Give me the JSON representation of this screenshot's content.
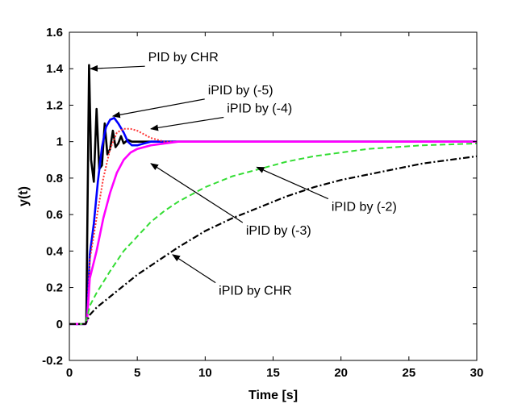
{
  "chart_data": {
    "type": "line",
    "title": "",
    "xlabel": "Time [s]",
    "ylabel": "y(t)",
    "xlim": [
      0,
      30
    ],
    "ylim": [
      -0.2,
      1.6
    ],
    "xticks": [
      0,
      5,
      10,
      15,
      20,
      25,
      30
    ],
    "yticks": [
      -0.2,
      0,
      0.2,
      0.4,
      0.6,
      0.8,
      1,
      1.2,
      1.4,
      1.6
    ],
    "xtick_labels": [
      "0",
      "5",
      "10",
      "15",
      "20",
      "25",
      "30"
    ],
    "ytick_labels": [
      "-0.2",
      "0",
      "0.2",
      "0.4",
      "0.6",
      "0.8",
      "1",
      "1.2",
      "1.4",
      "1.6"
    ],
    "grid": false,
    "series": [
      {
        "color": "#000000",
        "style": "solid",
        "x": [
          0,
          1.2,
          1.25,
          1.45,
          1.6,
          1.8,
          2.0,
          2.2,
          2.4,
          2.6,
          2.8,
          3.0,
          3.2,
          3.4,
          3.6,
          3.8,
          4.0,
          4.3,
          4.6,
          5.0,
          6.0,
          30
        ],
        "y": [
          0,
          0,
          0.02,
          1.42,
          0.9,
          0.78,
          1.18,
          0.85,
          0.87,
          1.1,
          0.93,
          0.96,
          1.06,
          0.97,
          0.99,
          1.03,
          0.99,
          1.01,
          1.0,
          1.0,
          1.0,
          1.0
        ]
      },
      {
        "color": "#0000ff",
        "style": "solid",
        "x": [
          0,
          1.2,
          1.3,
          1.5,
          1.8,
          2.1,
          2.4,
          2.7,
          3.0,
          3.3,
          3.6,
          4.0,
          4.3,
          4.6,
          5.0,
          5.5,
          6.0,
          7.0,
          30
        ],
        "y": [
          0,
          0,
          0.02,
          0.38,
          0.55,
          0.78,
          0.97,
          1.08,
          1.12,
          1.13,
          1.1,
          1.05,
          1.0,
          0.98,
          0.98,
          0.99,
          1.0,
          1.0,
          1.0
        ]
      },
      {
        "color": "#ff3333",
        "style": "dotted",
        "x": [
          0,
          1.2,
          1.3,
          1.5,
          2.0,
          2.5,
          3.0,
          3.5,
          4.0,
          4.5,
          5.0,
          5.5,
          6.0,
          7.0,
          8.0,
          30
        ],
        "y": [
          0,
          0,
          0.02,
          0.35,
          0.58,
          0.8,
          0.96,
          1.05,
          1.07,
          1.07,
          1.06,
          1.04,
          1.02,
          1.0,
          1.0,
          1.0
        ]
      },
      {
        "color": "#ff00ff",
        "style": "solid",
        "x": [
          0,
          1.2,
          1.3,
          1.5,
          2.0,
          2.5,
          3.0,
          3.5,
          4.0,
          4.5,
          5.0,
          5.5,
          6.0,
          7.0,
          8.0,
          9.0,
          10.0,
          30
        ],
        "y": [
          0,
          0,
          0.02,
          0.25,
          0.4,
          0.58,
          0.72,
          0.83,
          0.9,
          0.94,
          0.96,
          0.97,
          0.98,
          0.99,
          1.0,
          1.0,
          1.0,
          1.0
        ]
      },
      {
        "color": "#33dd33",
        "style": "dashed",
        "x": [
          0,
          1.2,
          1.5,
          2,
          3,
          4,
          5,
          6,
          7,
          8,
          10,
          12,
          14,
          16,
          18,
          20,
          22,
          24,
          26,
          28,
          30
        ],
        "y": [
          0,
          0,
          0.1,
          0.17,
          0.29,
          0.4,
          0.48,
          0.56,
          0.62,
          0.67,
          0.75,
          0.81,
          0.85,
          0.89,
          0.92,
          0.94,
          0.96,
          0.97,
          0.98,
          0.985,
          0.99
        ]
      },
      {
        "color": "#000000",
        "style": "dashdot",
        "x": [
          0,
          1.2,
          1.5,
          2,
          3,
          4,
          5,
          6,
          8,
          10,
          12,
          14,
          16,
          18,
          20,
          22,
          24,
          26,
          28,
          30
        ],
        "y": [
          0,
          0,
          0.05,
          0.09,
          0.15,
          0.21,
          0.27,
          0.32,
          0.42,
          0.51,
          0.58,
          0.64,
          0.7,
          0.75,
          0.79,
          0.82,
          0.85,
          0.88,
          0.9,
          0.92
        ]
      }
    ],
    "annotations": [
      {
        "text": "PID by CHR",
        "tx": 5.8,
        "ty": 1.44,
        "ax": 1.55,
        "ay": 1.4
      },
      {
        "text": "iPID by (-5)",
        "tx": 10.2,
        "ty": 1.26,
        "ax": 3.2,
        "ay": 1.14
      },
      {
        "text": "iPID by (-4)",
        "tx": 11.6,
        "ty": 1.16,
        "ax": 6.0,
        "ay": 1.07
      },
      {
        "text": "iPID by (-2)",
        "tx": 19.3,
        "ty": 0.62,
        "ax": 13.8,
        "ay": 0.86
      },
      {
        "text": "iPID by (-3)",
        "tx": 13.0,
        "ty": 0.49,
        "ax": 6.0,
        "ay": 0.88
      },
      {
        "text": "iPID by CHR",
        "tx": 11.0,
        "ty": 0.16,
        "ax": 7.6,
        "ay": 0.38
      }
    ]
  }
}
